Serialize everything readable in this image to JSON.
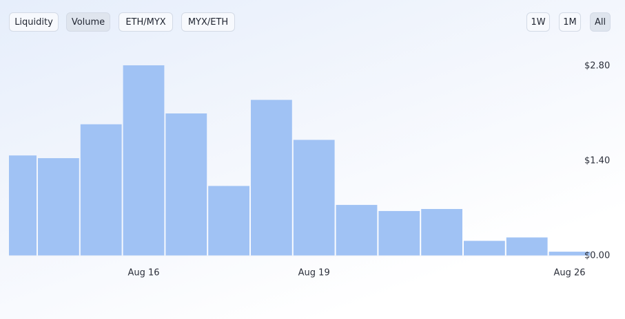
{
  "tabs": [
    "Liquidity",
    "Volume",
    "ETH/MYX",
    "MYX/ETH"
  ],
  "ranges": [
    "1W",
    "1M",
    "All"
  ],
  "chart_data": {
    "type": "bar",
    "categories": [
      null,
      null,
      null,
      "Aug 16",
      null,
      null,
      null,
      "Aug 19",
      null,
      null,
      null,
      null,
      null,
      "Aug 26"
    ],
    "values": [
      1.48,
      1.44,
      1.94,
      2.81,
      2.1,
      1.03,
      2.3,
      1.71,
      0.75,
      0.66,
      0.69,
      0.22,
      0.27,
      0.06
    ],
    "color": "#a0c2f4",
    "ylim": [
      0,
      2.8
    ],
    "yticks": [
      {
        "value": 0,
        "label": "$0.00"
      },
      {
        "value": 1.4,
        "label": "$1.40m"
      },
      {
        "value": 2.8,
        "label": "$2.80m"
      }
    ],
    "grid": false
  }
}
